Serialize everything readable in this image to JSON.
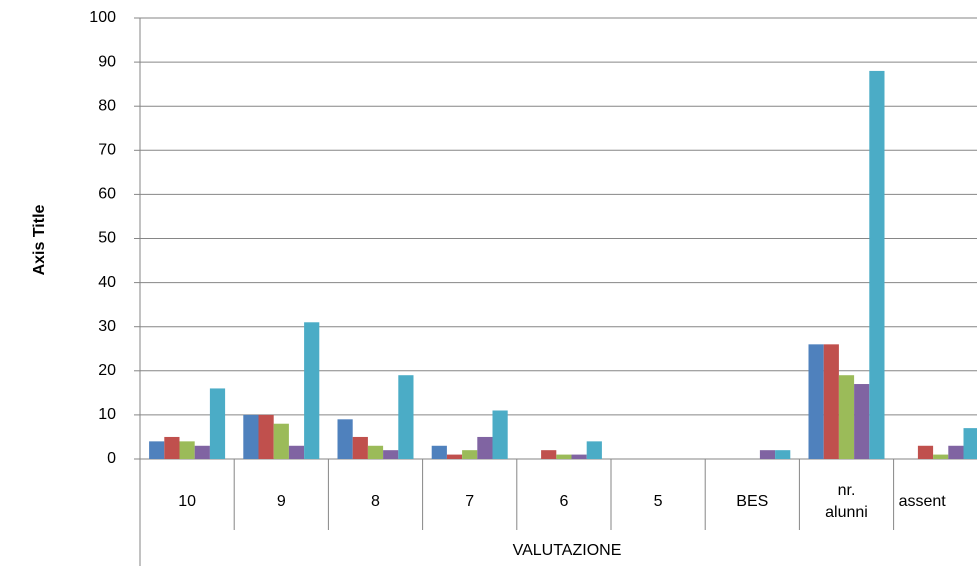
{
  "chart_data": {
    "type": "bar",
    "x_label": "VALUTAZIONE",
    "y_label": "Axis Title",
    "categories": [
      "10",
      "9",
      "8",
      "7",
      "6",
      "5",
      "BES",
      "nr. alunni",
      "assent"
    ],
    "series": [
      {
        "color": "#4f81bd",
        "values": [
          4,
          10,
          9,
          3,
          0,
          0,
          0,
          26,
          0
        ]
      },
      {
        "color": "#c0504d",
        "values": [
          5,
          10,
          5,
          1,
          2,
          0,
          0,
          26,
          3
        ]
      },
      {
        "color": "#9bbb59",
        "values": [
          4,
          8,
          3,
          2,
          1,
          0,
          0,
          19,
          1
        ]
      },
      {
        "color": "#8064a2",
        "values": [
          3,
          3,
          2,
          5,
          1,
          0,
          2,
          17,
          3
        ]
      },
      {
        "color": "#4bacc6",
        "values": [
          16,
          31,
          19,
          11,
          4,
          0,
          2,
          88,
          7
        ]
      }
    ],
    "ylim": [
      0,
      100
    ],
    "yticks": [
      0,
      10,
      20,
      30,
      40,
      50,
      60,
      70,
      80,
      90,
      100
    ],
    "grid": true
  }
}
